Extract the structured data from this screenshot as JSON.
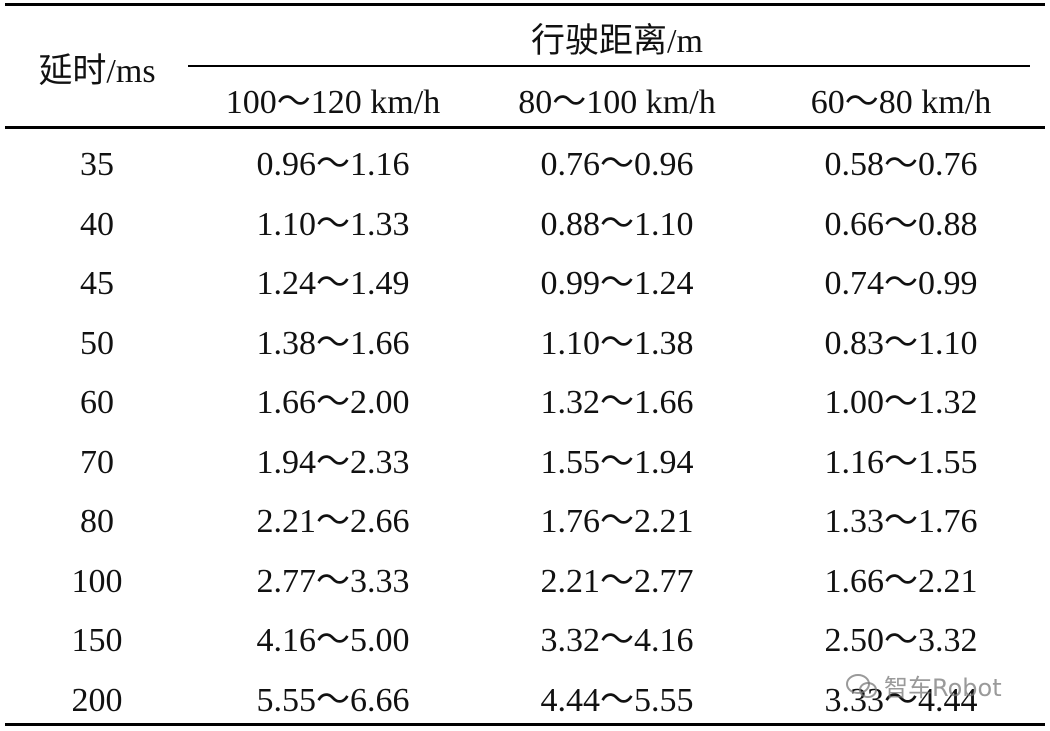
{
  "table": {
    "row_header": "延时/ms",
    "group_header": "行驶距离/m",
    "columns": [
      "100～120 km/h",
      "80～100 km/h",
      "60～80 km/h"
    ],
    "rows": [
      [
        "35",
        "0.96～1.16",
        "0.76～0.96",
        "0.58～0.76"
      ],
      [
        "40",
        "1.10～1.33",
        "0.88～1.10",
        "0.66～0.88"
      ],
      [
        "45",
        "1.24～1.49",
        "0.99～1.24",
        "0.74～0.99"
      ],
      [
        "50",
        "1.38～1.66",
        "1.10～1.38",
        "0.83～1.10"
      ],
      [
        "60",
        "1.66～2.00",
        "1.32～1.66",
        "1.00～1.32"
      ],
      [
        "70",
        "1.94～2.33",
        "1.55～1.94",
        "1.16～1.55"
      ],
      [
        "80",
        "2.21～2.66",
        "1.76～2.21",
        "1.33～1.76"
      ],
      [
        "100",
        "2.77～3.33",
        "2.21～2.77",
        "1.66～2.21"
      ],
      [
        "150",
        "4.16～5.00",
        "3.32～4.16",
        "2.50～3.32"
      ],
      [
        "200",
        "5.55～6.66",
        "4.44～5.55",
        "3.33～4.44"
      ]
    ]
  },
  "watermark": "智车Robot"
}
